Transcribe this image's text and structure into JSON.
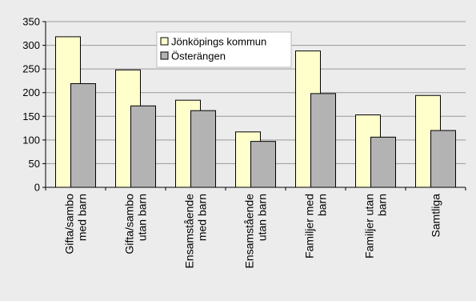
{
  "chart_data": {
    "type": "bar",
    "title": "",
    "xlabel": "",
    "ylabel": "",
    "ylim": [
      0,
      350
    ],
    "yticks": [
      0,
      50,
      100,
      150,
      200,
      250,
      300,
      350
    ],
    "grid": true,
    "legend_position": "top-center",
    "categories": [
      [
        "Gifta/sambo",
        "med barn"
      ],
      [
        "Gifta/sambo",
        "utan barn"
      ],
      [
        "Ensamstående",
        "med barn"
      ],
      [
        "Ensamstående",
        "utan barn"
      ],
      [
        "Familjer med",
        "barn"
      ],
      [
        "Familjer utan",
        "barn"
      ],
      [
        "Samtliga"
      ]
    ],
    "series": [
      {
        "name": "Jönköpings kommun",
        "color": "#ffffcc",
        "values": [
          318,
          248,
          184,
          117,
          288,
          153,
          194
        ]
      },
      {
        "name": "Österängen",
        "color": "#b3b3b3",
        "values": [
          219,
          172,
          162,
          97,
          198,
          106,
          120
        ]
      }
    ]
  }
}
